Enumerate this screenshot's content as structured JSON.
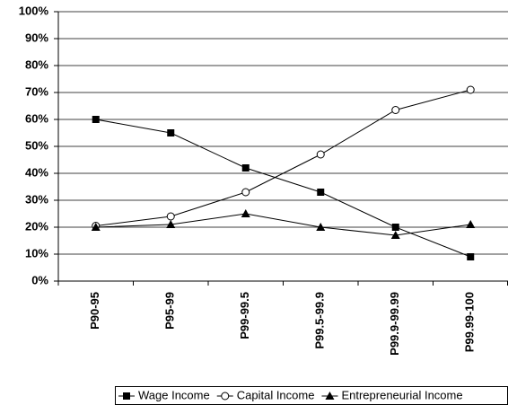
{
  "chart_data": {
    "type": "line",
    "categories": [
      "P90-95",
      "P95-99",
      "P99-99.5",
      "P99.5-99.9",
      "P99.9-99.99",
      "P99.99-100"
    ],
    "series": [
      {
        "name": "Wage Income",
        "color": "#000000",
        "marker": "square",
        "values": [
          60,
          55,
          42,
          33,
          20,
          9
        ]
      },
      {
        "name": "Capital Income",
        "color": "#000000",
        "marker": "circle",
        "values": [
          20.5,
          24,
          33,
          47,
          63.5,
          71
        ]
      },
      {
        "name": "Entrepreneurial Income",
        "color": "#000000",
        "marker": "triangle",
        "values": [
          20,
          21,
          25,
          20,
          17,
          21
        ]
      }
    ],
    "ylim": [
      0,
      100
    ],
    "yticks": [
      {
        "value": 0,
        "label": "0%"
      },
      {
        "value": 10,
        "label": "10%"
      },
      {
        "value": 20,
        "label": "20%"
      },
      {
        "value": 30,
        "label": "30%"
      },
      {
        "value": 40,
        "label": "40%"
      },
      {
        "value": 50,
        "label": "50%"
      },
      {
        "value": 60,
        "label": "60%"
      },
      {
        "value": 70,
        "label": "70%"
      },
      {
        "value": 80,
        "label": "80%"
      },
      {
        "value": 90,
        "label": "90%"
      },
      {
        "value": 100,
        "label": "100%"
      }
    ],
    "grid": true,
    "legend": "bottom"
  }
}
